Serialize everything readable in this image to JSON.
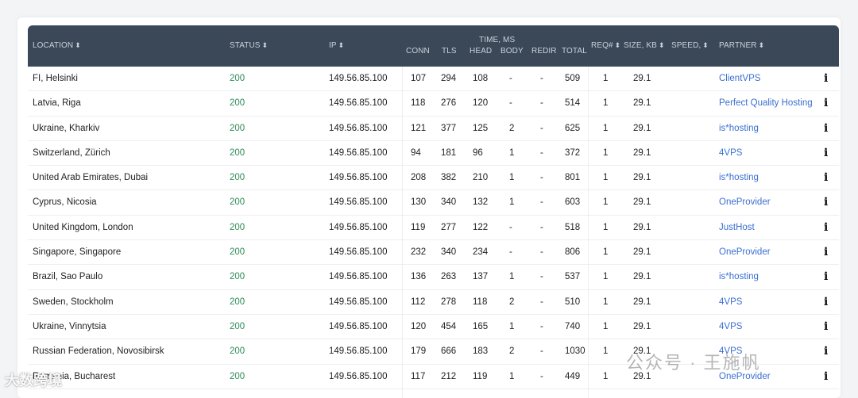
{
  "headers": {
    "location": "LOCATION",
    "status": "STATUS",
    "ip": "IP",
    "time_group": "TIME, MS",
    "conn": "CONN",
    "tls": "TLS",
    "head": "HEAD",
    "body": "BODY",
    "redir": "REDIR",
    "total": "TOTAL",
    "req": "REQ#",
    "size": "SIZE, KB",
    "speed": "SPEED,",
    "partner": "PARTNER",
    "sort_glyph": "⬍"
  },
  "rows": [
    {
      "location": "FI, Helsinki",
      "status": "200",
      "ip": "149.56.85.100",
      "conn": "107",
      "tls": "294",
      "head": "108",
      "body": "-",
      "redir": "-",
      "total": "509",
      "req": "1",
      "size": "29.1",
      "partner": "ClientVPS",
      "info": "i"
    },
    {
      "location": "Latvia, Riga",
      "status": "200",
      "ip": "149.56.85.100",
      "conn": "118",
      "tls": "276",
      "head": "120",
      "body": "-",
      "redir": "-",
      "total": "514",
      "req": "1",
      "size": "29.1",
      "partner": "Perfect Quality Hosting",
      "info": "i"
    },
    {
      "location": "Ukraine, Kharkiv",
      "status": "200",
      "ip": "149.56.85.100",
      "conn": "121",
      "tls": "377",
      "head": "125",
      "body": "2",
      "redir": "-",
      "total": "625",
      "req": "1",
      "size": "29.1",
      "partner": "is*hosting",
      "info": "i"
    },
    {
      "location": "Switzerland, Zürich",
      "status": "200",
      "ip": "149.56.85.100",
      "conn": "94",
      "tls": "181",
      "head": "96",
      "body": "1",
      "redir": "-",
      "total": "372",
      "req": "1",
      "size": "29.1",
      "partner": "4VPS",
      "info": "i"
    },
    {
      "location": "United Arab Emirates, Dubai",
      "status": "200",
      "ip": "149.56.85.100",
      "conn": "208",
      "tls": "382",
      "head": "210",
      "body": "1",
      "redir": "-",
      "total": "801",
      "req": "1",
      "size": "29.1",
      "partner": "is*hosting",
      "info": "i"
    },
    {
      "location": "Cyprus, Nicosia",
      "status": "200",
      "ip": "149.56.85.100",
      "conn": "130",
      "tls": "340",
      "head": "132",
      "body": "1",
      "redir": "-",
      "total": "603",
      "req": "1",
      "size": "29.1",
      "partner": "OneProvider",
      "info": "i"
    },
    {
      "location": "United Kingdom, London",
      "status": "200",
      "ip": "149.56.85.100",
      "conn": "119",
      "tls": "277",
      "head": "122",
      "body": "-",
      "redir": "-",
      "total": "518",
      "req": "1",
      "size": "29.1",
      "partner": "JustHost",
      "info": "i"
    },
    {
      "location": "Singapore, Singapore",
      "status": "200",
      "ip": "149.56.85.100",
      "conn": "232",
      "tls": "340",
      "head": "234",
      "body": "-",
      "redir": "-",
      "total": "806",
      "req": "1",
      "size": "29.1",
      "partner": "OneProvider",
      "info": "i"
    },
    {
      "location": "Brazil, Sao Paulo",
      "status": "200",
      "ip": "149.56.85.100",
      "conn": "136",
      "tls": "263",
      "head": "137",
      "body": "1",
      "redir": "-",
      "total": "537",
      "req": "1",
      "size": "29.1",
      "partner": "is*hosting",
      "info": "i"
    },
    {
      "location": "Sweden, Stockholm",
      "status": "200",
      "ip": "149.56.85.100",
      "conn": "112",
      "tls": "278",
      "head": "118",
      "body": "2",
      "redir": "-",
      "total": "510",
      "req": "1",
      "size": "29.1",
      "partner": "4VPS",
      "info": "i"
    },
    {
      "location": "Ukraine, Vinnytsia",
      "status": "200",
      "ip": "149.56.85.100",
      "conn": "120",
      "tls": "454",
      "head": "165",
      "body": "1",
      "redir": "-",
      "total": "740",
      "req": "1",
      "size": "29.1",
      "partner": "4VPS",
      "info": "i"
    },
    {
      "location": "Russian Federation, Novosibirsk",
      "status": "200",
      "ip": "149.56.85.100",
      "conn": "179",
      "tls": "666",
      "head": "183",
      "body": "2",
      "redir": "-",
      "total": "1030",
      "req": "1",
      "size": "29.1",
      "partner": "4VPS",
      "info": "i"
    },
    {
      "location": "Romania, Bucharest",
      "status": "200",
      "ip": "149.56.85.100",
      "conn": "117",
      "tls": "212",
      "head": "119",
      "body": "1",
      "redir": "-",
      "total": "449",
      "req": "1",
      "size": "29.1",
      "partner": "OneProvider",
      "info": "i"
    }
  ],
  "watermarks": {
    "right": "公众号 · 王施帆",
    "left": "大数跨境"
  },
  "colors": {
    "header_bg": "#3b4858",
    "status_ok": "#2e8b57",
    "partner_link": "#3a6fd1"
  }
}
